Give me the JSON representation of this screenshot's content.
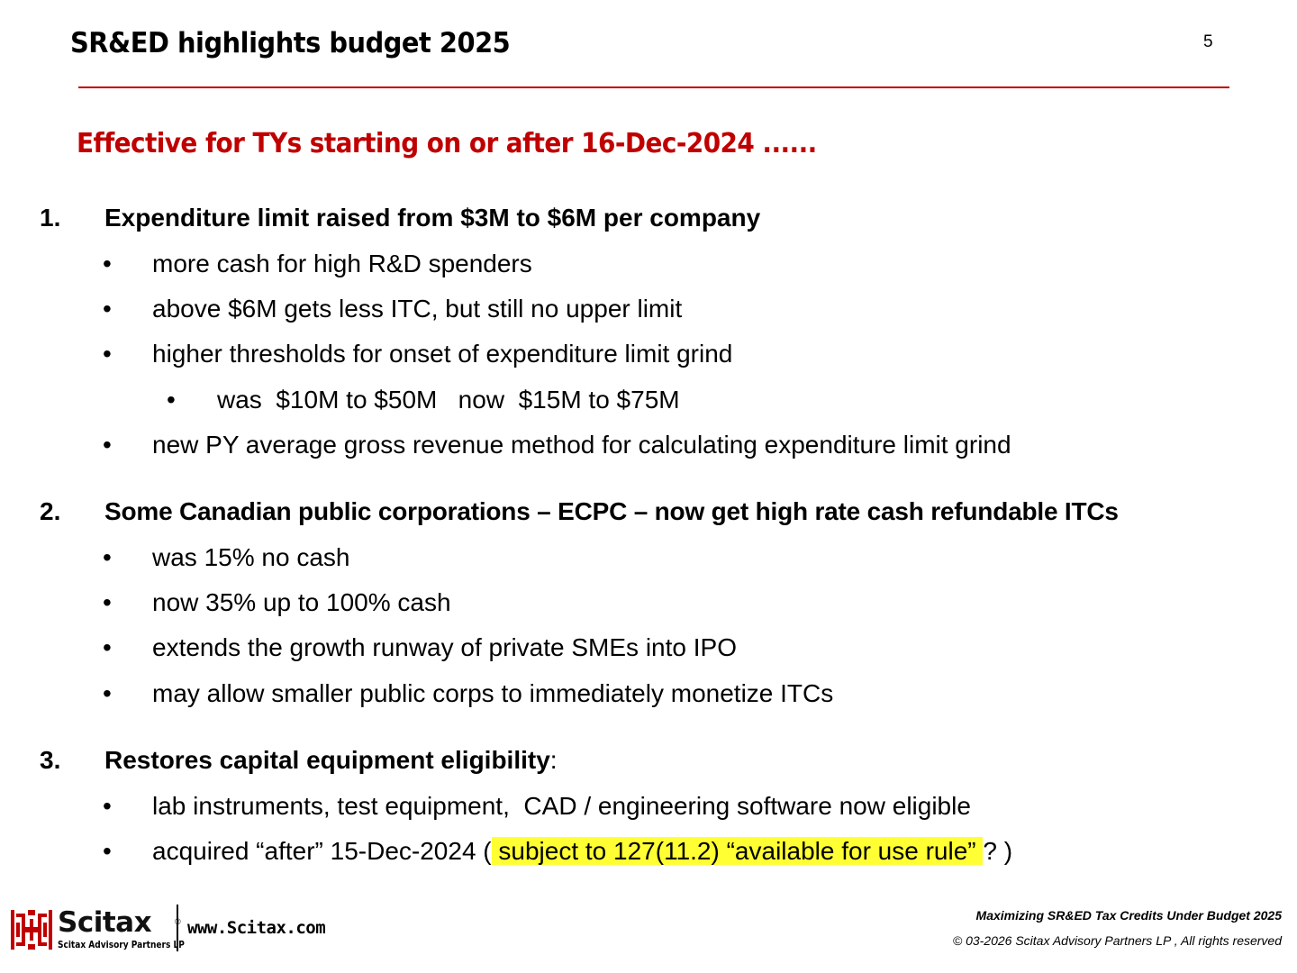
{
  "slide": {
    "title": "SR&ED highlights budget 2025",
    "page_number": "5",
    "subtitle": "Effective for TYs starting on or after 16-Dec-2024 ......"
  },
  "sections": [
    {
      "number": "1.",
      "heading": "Expenditure limit raised from $3M to $6M per company",
      "bullets": [
        "more cash for high R&D spenders",
        "above $6M gets less ITC, but still no upper limit",
        "higher thresholds for onset of expenditure limit grind",
        "new PY average gross revenue method for calculating expenditure limit grind"
      ],
      "sub_bullets": [
        "was  $10M to $50M   now  $15M to $75M"
      ]
    },
    {
      "number": "2.",
      "heading": "Some Canadian public corporations – ECPC – now get high rate cash refundable ITCs",
      "bullets": [
        "was 15% no cash",
        "now 35% up to 100% cash",
        "extends the growth runway of private SMEs into IPO",
        "may allow smaller public corps to immediately monetize ITCs"
      ]
    },
    {
      "number": "3.",
      "heading": "Restores capital equipment eligibility",
      "heading_suffix": ":",
      "bullets": [
        "lab instruments, test equipment,  CAD / engineering software now eligible"
      ],
      "last_bullet": {
        "before": "acquired “after” 15-Dec-2024 (",
        "highlight": " subject to 127(11.2) “available for use rule” ",
        "after": "? )"
      }
    }
  ],
  "bullet_glyph": "•",
  "footer": {
    "logo_name": "Scitax",
    "logo_reg": "®",
    "logo_sub": "Scitax Advisory Partners LP",
    "website": "www.Scitax.com",
    "course_title": "Maximizing SR&ED Tax Credits Under Budget 2025",
    "copyright": "© 03-2026 Scitax Advisory Partners LP , All rights reserved"
  },
  "colors": {
    "accent": "#c00000",
    "highlight": "#ffff33"
  }
}
